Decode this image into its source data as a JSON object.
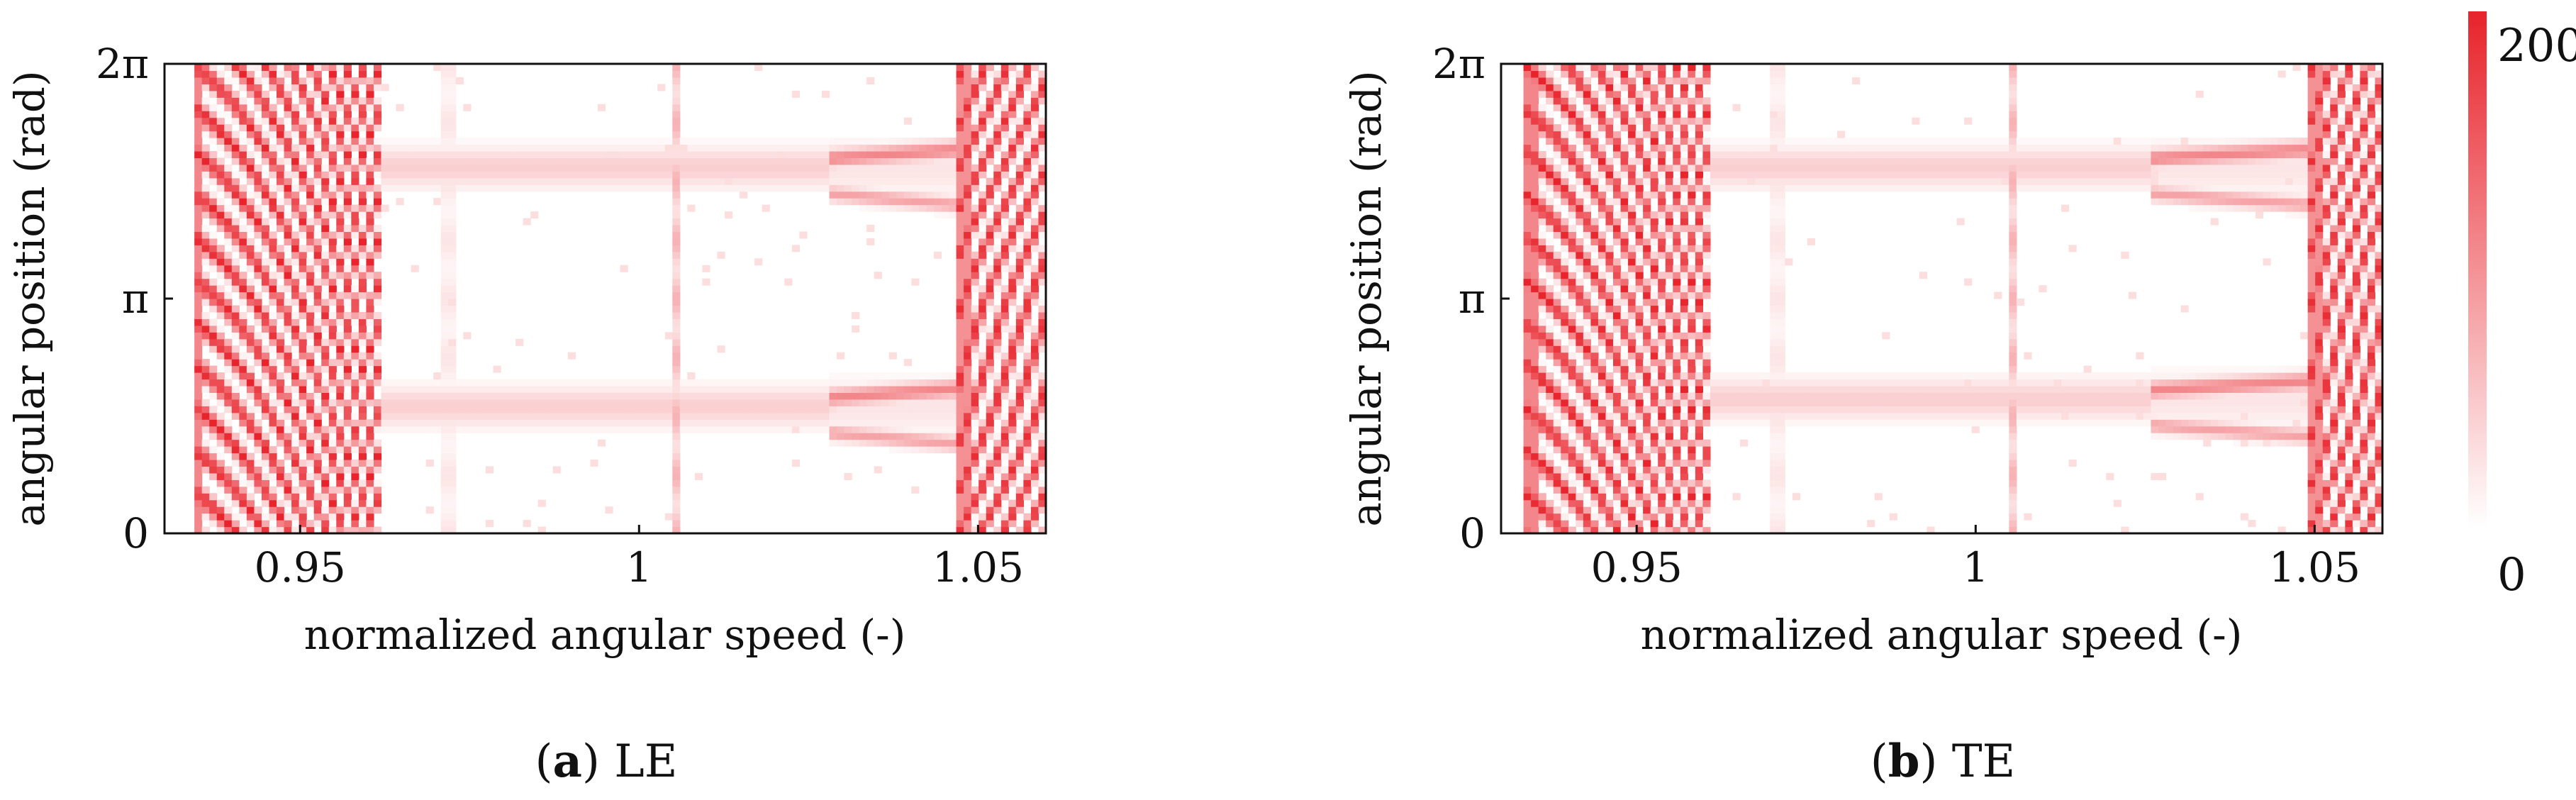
{
  "chart_data": [
    {
      "type": "heatmap",
      "panel": "a",
      "caption_letter": "a",
      "caption_text": "LE",
      "xlabel": "normalized angular speed (-)",
      "ylabel": "angular position (rad)",
      "xlim": [
        0.93,
        1.06
      ],
      "ylim": [
        0,
        6.2832
      ],
      "xticks": [
        0.95,
        1,
        1.05
      ],
      "xtick_labels": [
        "0.95",
        "1",
        "1.05"
      ],
      "yticks": [
        0,
        3.1416,
        6.2832
      ],
      "ytick_labels": [
        "0",
        "π",
        "2π"
      ],
      "features": {
        "dense_low_band": [
          0.934,
          0.962
        ],
        "dense_high_band": [
          1.047,
          1.06
        ],
        "band_centers": [
          1.7,
          4.9
        ],
        "vertical_lines": [
          0.972,
          1.005
        ],
        "split_start": 1.028
      }
    },
    {
      "type": "heatmap",
      "panel": "b",
      "caption_letter": "b",
      "caption_text": "TE",
      "xlabel": "normalized angular speed (-)",
      "ylabel": "angular position (rad)",
      "xlim": [
        0.93,
        1.06
      ],
      "ylim": [
        0,
        6.2832
      ],
      "xticks": [
        0.95,
        1,
        1.05
      ],
      "xtick_labels": [
        "0.95",
        "1",
        "1.05"
      ],
      "yticks": [
        0,
        3.1416,
        6.2832
      ],
      "ytick_labels": [
        "0",
        "π",
        "2π"
      ],
      "features": {
        "dense_low_band": [
          0.933,
          0.961
        ],
        "dense_high_band": [
          1.049,
          1.06
        ],
        "band_centers": [
          1.8,
          4.9
        ],
        "vertical_lines": [
          0.971,
          1.005
        ],
        "split_start": 1.026
      }
    }
  ],
  "colorbar": {
    "min": 0,
    "max": 200,
    "min_label": "0",
    "max_label": "200",
    "color_low": "#ffffff",
    "color_high": "#e8232b"
  }
}
